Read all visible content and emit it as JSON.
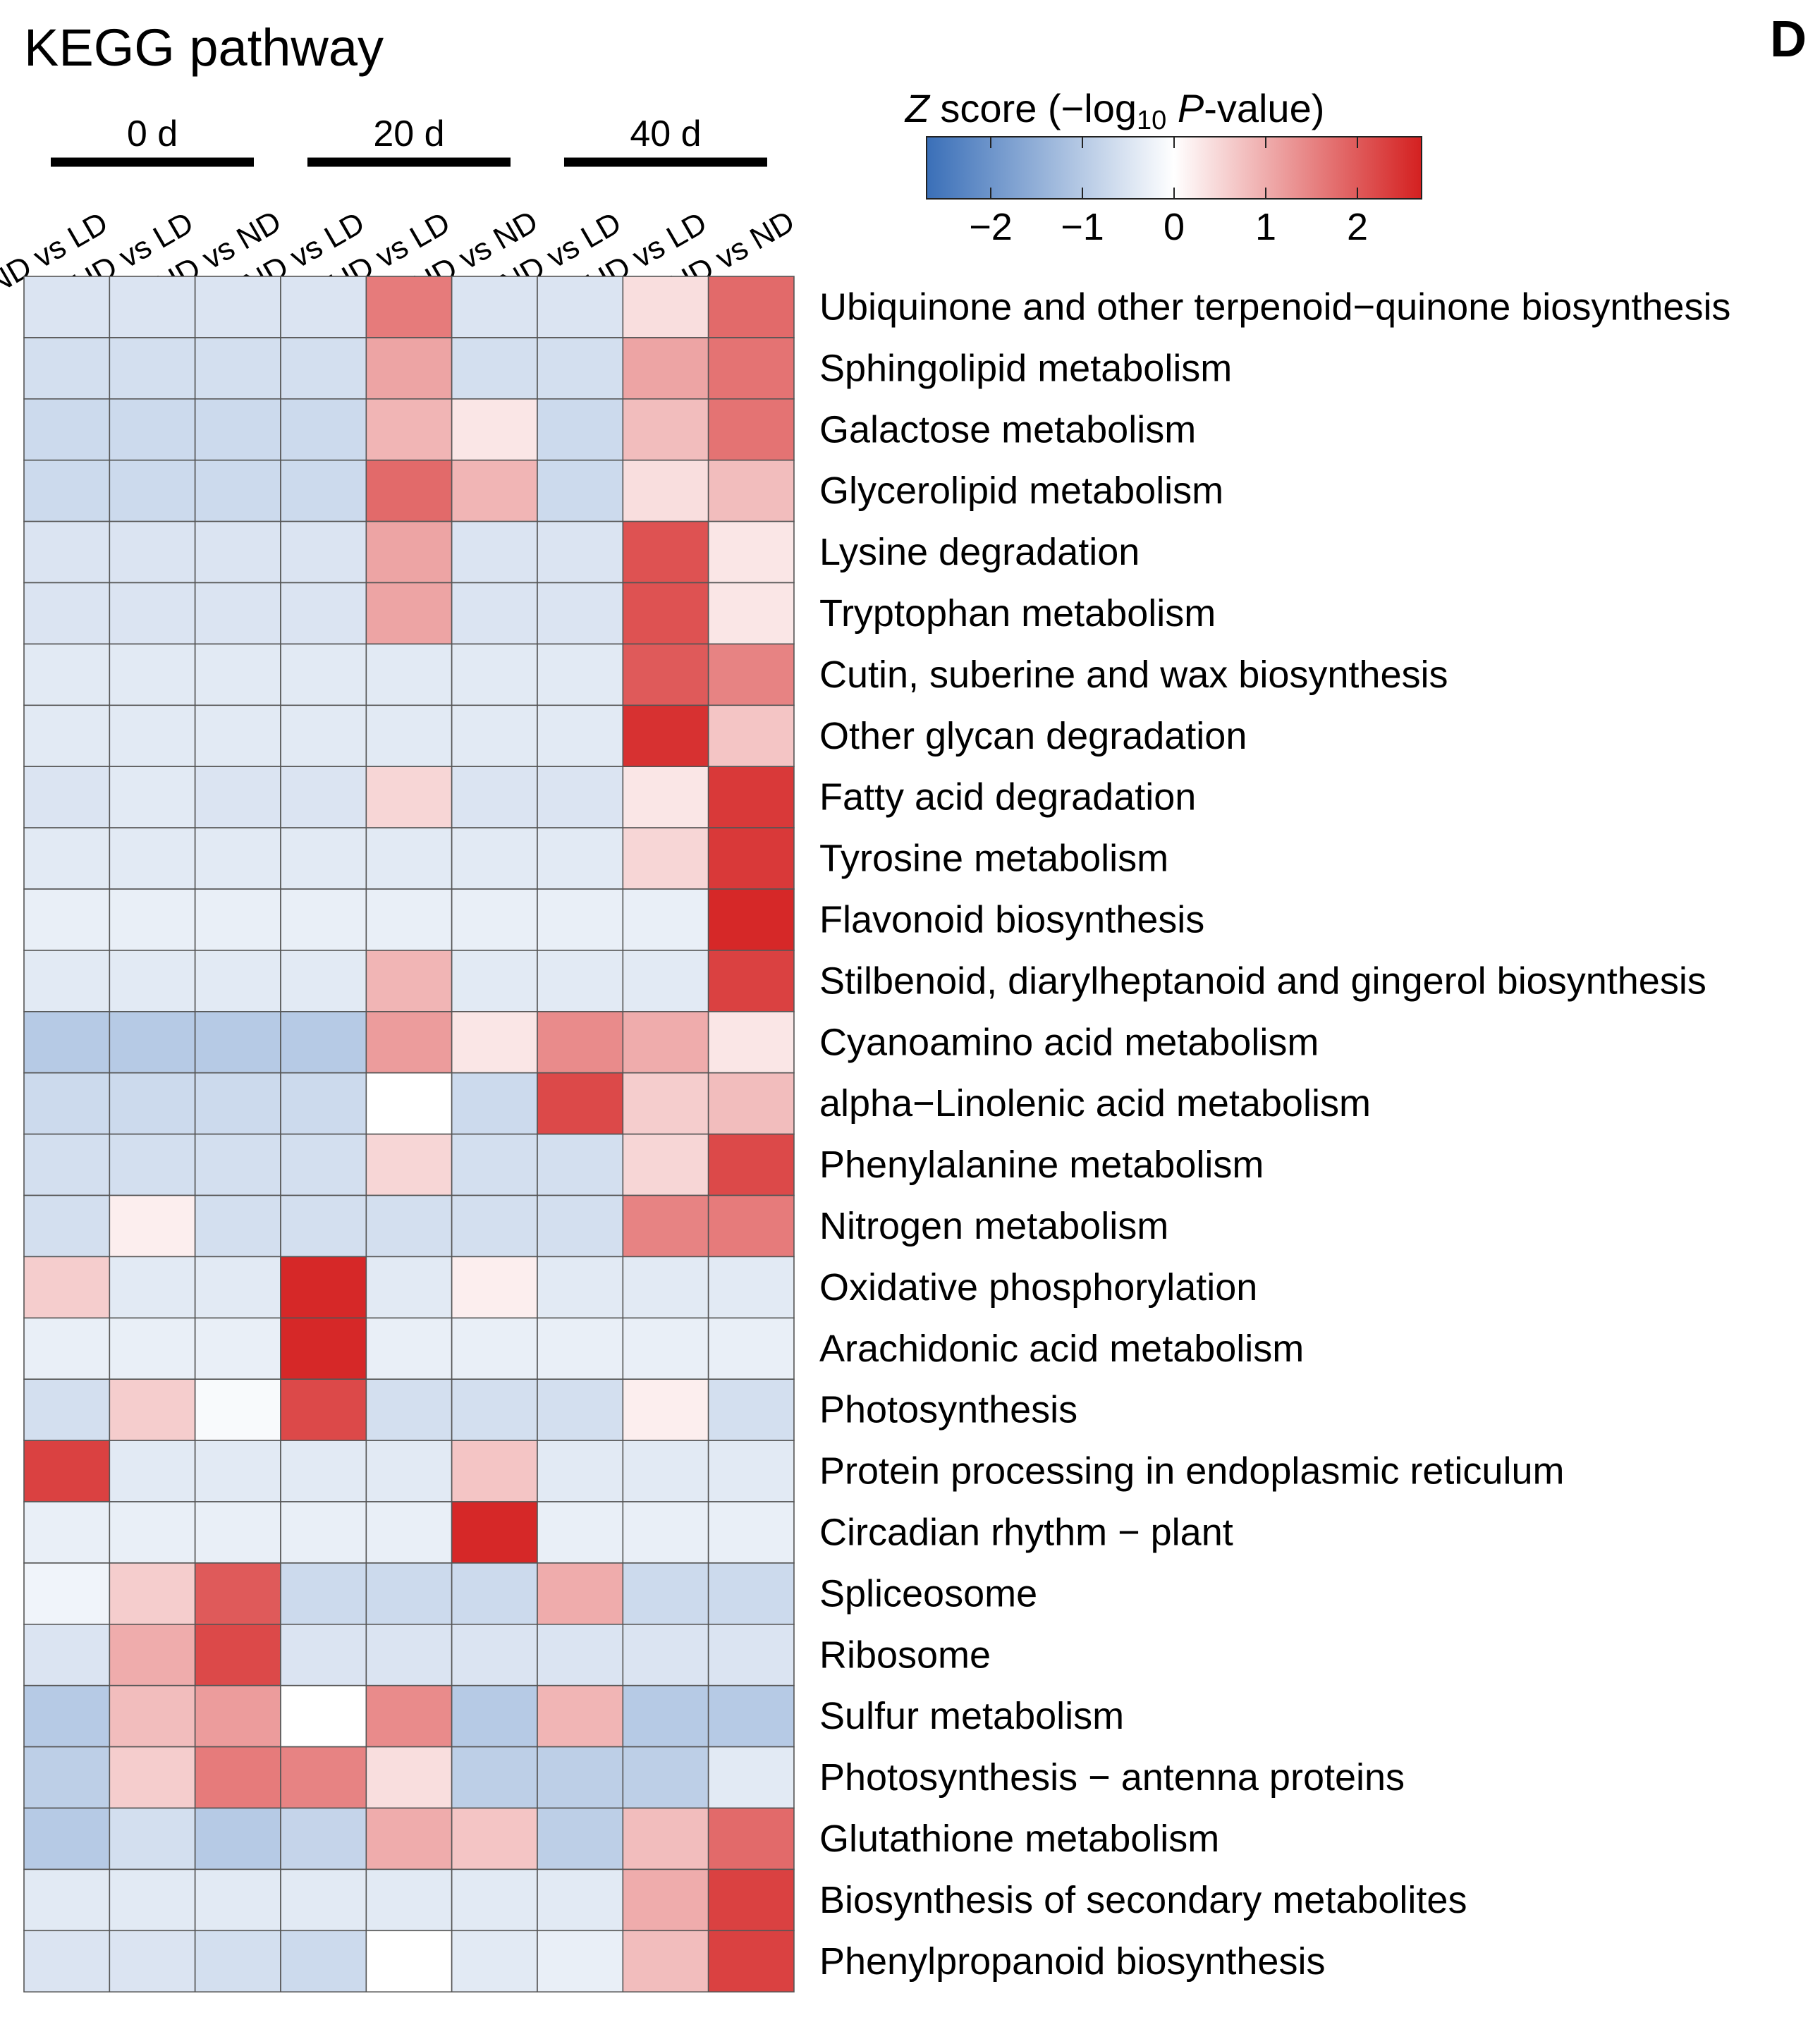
{
  "chart_data": {
    "type": "heatmap",
    "title": "KEGG pathway",
    "panel_label": "D",
    "colorbar": {
      "label_prefix": "Z",
      "label_mid": " score (−log",
      "label_sub": "10",
      "label_p": "P",
      "label_suffix": "-value)",
      "range": [
        -2.7,
        2.7
      ],
      "ticks": [
        -2,
        -1,
        0,
        1,
        2
      ],
      "tick_labels": [
        "−2",
        "−1",
        "0",
        "1",
        "2"
      ],
      "low_color": "#3a6fb8",
      "mid_color": "#ffffff",
      "high_color": "#d42020"
    },
    "column_groups": [
      {
        "label": "0 d",
        "span": [
          0,
          2
        ]
      },
      {
        "label": "20 d",
        "span": [
          3,
          5
        ]
      },
      {
        "label": "40 d",
        "span": [
          6,
          8
        ]
      }
    ],
    "columns": [
      "ND vs LD",
      "HD vs LD",
      "HD vs ND",
      "ND vs LD",
      "HD vs LD",
      "HD vs ND",
      "ND vs LD",
      "HD vs LD",
      "HD vs ND"
    ],
    "rows": [
      "Ubiquinone and other terpenoid−quinone biosynthesis",
      "Sphingolipid metabolism",
      "Galactose metabolism",
      "Glycerolipid metabolism",
      "Lysine degradation",
      "Tryptophan metabolism",
      "Cutin, suberine and wax biosynthesis",
      "Other glycan degradation",
      "Fatty acid degradation",
      "Tyrosine metabolism",
      "Flavonoid biosynthesis",
      "Stilbenoid, diarylheptanoid and gingerol biosynthesis",
      "Cyanoamino acid metabolism",
      "alpha−Linolenic acid metabolism",
      "Phenylalanine metabolism",
      "Nitrogen metabolism",
      "Oxidative phosphorylation",
      "Arachidonic acid metabolism",
      "Photosynthesis",
      "Protein processing in endoplasmic reticulum",
      "Circadian rhythm − plant",
      "Spliceosome",
      "Ribosome",
      "Sulfur metabolism",
      "Photosynthesis − antenna proteins",
      "Glutathione metabolism",
      "Biosynthesis of secondary metabolites",
      "Phenylpropanoid biosynthesis"
    ],
    "values": [
      [
        -0.5,
        -0.5,
        -0.5,
        -0.5,
        1.6,
        -0.5,
        -0.5,
        0.4,
        1.8
      ],
      [
        -0.6,
        -0.6,
        -0.6,
        -0.6,
        1.1,
        -0.6,
        -0.6,
        1.1,
        1.7
      ],
      [
        -0.7,
        -0.7,
        -0.7,
        -0.7,
        0.9,
        0.3,
        -0.7,
        0.8,
        1.7
      ],
      [
        -0.7,
        -0.7,
        -0.7,
        -0.7,
        1.8,
        0.9,
        -0.7,
        0.4,
        0.8
      ],
      [
        -0.5,
        -0.5,
        -0.5,
        -0.5,
        1.1,
        -0.5,
        -0.5,
        2.1,
        0.3
      ],
      [
        -0.5,
        -0.5,
        -0.5,
        -0.5,
        1.1,
        -0.5,
        -0.5,
        2.1,
        0.3
      ],
      [
        -0.4,
        -0.4,
        -0.4,
        -0.4,
        -0.4,
        -0.4,
        -0.4,
        2.0,
        1.5
      ],
      [
        -0.4,
        -0.4,
        -0.4,
        -0.4,
        -0.4,
        -0.4,
        -0.4,
        2.5,
        0.7
      ],
      [
        -0.5,
        -0.4,
        -0.5,
        -0.5,
        0.5,
        -0.5,
        -0.5,
        0.3,
        2.4
      ],
      [
        -0.4,
        -0.4,
        -0.4,
        -0.4,
        -0.4,
        -0.4,
        -0.4,
        0.5,
        2.4
      ],
      [
        -0.3,
        -0.3,
        -0.3,
        -0.3,
        -0.3,
        -0.3,
        -0.3,
        -0.3,
        2.6
      ],
      [
        -0.4,
        -0.4,
        -0.4,
        -0.4,
        0.9,
        -0.4,
        -0.4,
        -0.4,
        2.3
      ],
      [
        -1.0,
        -1.0,
        -1.0,
        -1.0,
        1.2,
        0.3,
        1.4,
        1.0,
        0.3
      ],
      [
        -0.7,
        -0.7,
        -0.7,
        -0.7,
        0.0,
        -0.7,
        2.2,
        0.6,
        0.8
      ],
      [
        -0.6,
        -0.6,
        -0.6,
        -0.6,
        0.5,
        -0.6,
        -0.6,
        0.5,
        2.2
      ],
      [
        -0.6,
        0.2,
        -0.6,
        -0.6,
        -0.6,
        -0.6,
        -0.6,
        1.5,
        1.6
      ],
      [
        0.6,
        -0.4,
        -0.4,
        2.6,
        -0.4,
        0.2,
        -0.4,
        -0.4,
        -0.4
      ],
      [
        -0.3,
        -0.3,
        -0.3,
        2.6,
        -0.3,
        -0.3,
        -0.3,
        -0.3,
        -0.3
      ],
      [
        -0.6,
        0.6,
        -0.1,
        2.2,
        -0.6,
        -0.6,
        -0.6,
        0.2,
        -0.6
      ],
      [
        2.3,
        -0.4,
        -0.4,
        -0.4,
        -0.4,
        0.7,
        -0.4,
        -0.4,
        -0.4
      ],
      [
        -0.3,
        -0.3,
        -0.3,
        -0.3,
        -0.3,
        2.6,
        -0.3,
        -0.3,
        -0.3
      ],
      [
        -0.2,
        0.6,
        2.0,
        -0.7,
        -0.7,
        -0.7,
        1.0,
        -0.7,
        -0.7
      ],
      [
        -0.5,
        1.0,
        2.2,
        -0.5,
        -0.5,
        -0.5,
        -0.5,
        -0.5,
        -0.5
      ],
      [
        -1.0,
        0.8,
        1.2,
        0.0,
        1.4,
        -1.0,
        0.9,
        -1.0,
        -1.0
      ],
      [
        -0.9,
        0.6,
        1.6,
        1.5,
        0.4,
        -0.9,
        -0.9,
        -0.9,
        -0.4
      ],
      [
        -1.0,
        -0.6,
        -1.0,
        -0.8,
        1.0,
        0.7,
        -0.9,
        0.8,
        1.8
      ],
      [
        -0.4,
        -0.4,
        -0.4,
        -0.4,
        -0.4,
        -0.4,
        -0.4,
        1.0,
        2.3
      ],
      [
        -0.5,
        -0.5,
        -0.6,
        -0.7,
        0.0,
        -0.4,
        -0.3,
        0.8,
        2.3
      ]
    ]
  }
}
